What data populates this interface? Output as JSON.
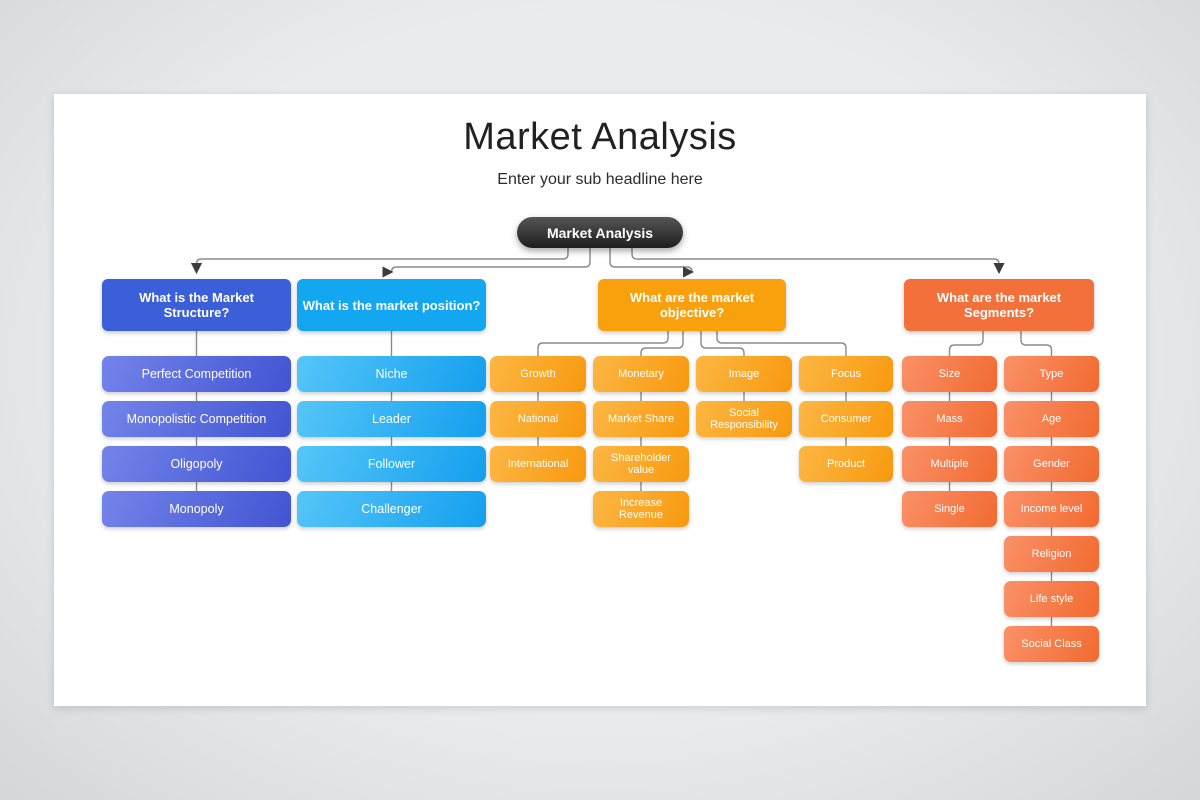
{
  "page": {
    "title": "Market Analysis",
    "subtitle": "Enter your sub headline here"
  },
  "root": {
    "label": "Market Analysis"
  },
  "colors": {
    "background": "#e9eaeb",
    "card": "#ffffff",
    "title_text": "#212121",
    "connector_line": "#8b8b8b",
    "arrowhead": "#3c3c3c",
    "root_gradient_top": "#555555",
    "root_gradient_bottom": "#1e1e1e",
    "branch_palettes": [
      {
        "header": "#3b5ed9",
        "item_from": "#7384ea",
        "item_to": "#4254d2"
      },
      {
        "header": "#12a7f0",
        "item_from": "#55c6f8",
        "item_to": "#149fee"
      },
      {
        "header": "#f9a10d",
        "item_from": "#fcb744",
        "item_to": "#f8990e"
      },
      {
        "header": "#f4703a",
        "item_from": "#fa9168",
        "item_to": "#f26a30"
      }
    ]
  },
  "branches": [
    {
      "header": "What is the Market Structure?",
      "columns": [
        [
          "Perfect Competition",
          "Monopolistic Competition",
          "Oligopoly",
          "Monopoly"
        ]
      ]
    },
    {
      "header": "What is the market position?",
      "columns": [
        [
          "Niche",
          "Leader",
          "Follower",
          "Challenger"
        ]
      ]
    },
    {
      "header": "What are the market objective?",
      "columns": [
        [
          "Growth",
          "National",
          "International"
        ],
        [
          "Monetary",
          "Market Share",
          "Shareholder value",
          "Increase Revenue"
        ],
        [
          "Image",
          "Social Responsibility"
        ],
        [
          "Focus",
          "Consumer",
          "Product"
        ]
      ]
    },
    {
      "header": "What are the market Segments?",
      "columns": [
        [
          "Size",
          "Mass",
          "Multiple",
          "Single"
        ],
        [
          "Type",
          "Age",
          "Gender",
          "Income level",
          "Religion",
          "Life style",
          "Social Class"
        ]
      ]
    }
  ]
}
